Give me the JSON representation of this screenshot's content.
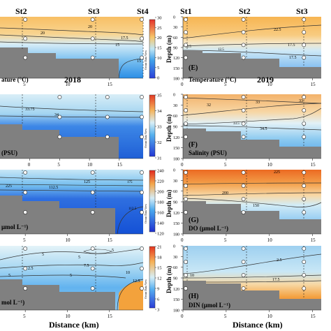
{
  "figure": {
    "year_left": "2018",
    "year_right": "2019",
    "xlabel": "Distance (km)",
    "ylabel": "Depth (m)",
    "colorbar_side_label": "Ocean Data View"
  },
  "chart_data": [
    {
      "type": "heatmap",
      "column": "left",
      "row": 0,
      "variable": "Temperature",
      "label": "ature (°C)",
      "stations": [
        {
          "name": "St2",
          "x": 5
        },
        {
          "name": "St3",
          "x": 13
        },
        {
          "name": "St4",
          "x": 19
        }
      ],
      "xlim": [
        2,
        19
      ],
      "xticks": [
        5,
        10,
        15
      ],
      "colorbar": {
        "min": 0,
        "max": 30,
        "ticks": [
          0,
          5,
          10,
          15,
          20,
          25,
          30
        ],
        "scheme": "temp"
      },
      "contour_labels": [
        "20",
        "20",
        "17.5",
        "15",
        "15"
      ],
      "colors": {
        "shallow": "#f7b351",
        "deep": "#2b8ee6",
        "land": "#808080"
      }
    },
    {
      "type": "heatmap",
      "column": "right",
      "row": 0,
      "panel_letter": "(E)",
      "variable": "Temperature",
      "label": "Temperature (°C)",
      "stations": [
        {
          "name": "St1",
          "x": 0
        },
        {
          "name": "St2",
          "x": 7
        },
        {
          "name": "St3",
          "x": 14
        }
      ],
      "xlim": [
        0,
        16
      ],
      "xticks": [
        0,
        5,
        10,
        15
      ],
      "ylim": [
        0,
        180
      ],
      "yticks": [
        0,
        30,
        60,
        90,
        120,
        150,
        180
      ],
      "contour_labels": [
        "22.5",
        "17.5",
        "12.5",
        "12.5",
        "17.5"
      ],
      "colors": {
        "shallow": "#f7b351",
        "deep": "#5aa7ee",
        "land": "#808080"
      }
    },
    {
      "type": "heatmap",
      "column": "left",
      "row": 1,
      "variable": "Salinity",
      "label": "(PSU)",
      "stations": [
        {
          "name": "St2",
          "x": 5
        },
        {
          "name": "St3",
          "x": 13
        },
        {
          "name": "St4",
          "x": 19
        }
      ],
      "xlim": [
        -5,
        19
      ],
      "xticks": [
        0,
        5,
        10,
        15
      ],
      "colorbar": {
        "min": 31,
        "max": 35,
        "ticks": [
          31,
          32,
          33,
          34,
          35
        ],
        "scheme": "sal"
      },
      "contour_labels": [
        "33.75",
        "34"
      ],
      "colors": {
        "shallow": "#bfe2f3",
        "deep": "#1f5fd6",
        "land": "#808080"
      }
    },
    {
      "type": "heatmap",
      "column": "right",
      "row": 1,
      "panel_letter": "(F)",
      "variable": "Salinity",
      "label": "Salinity (PSU)",
      "stations": [
        {
          "name": "St1",
          "x": 0
        },
        {
          "name": "St2",
          "x": 7
        },
        {
          "name": "St3",
          "x": 14
        }
      ],
      "xlim": [
        0,
        16
      ],
      "xticks": [
        0,
        5,
        10,
        15
      ],
      "ylim": [
        0,
        180
      ],
      "yticks": [
        0,
        30,
        60,
        90,
        120,
        150,
        180
      ],
      "contour_labels": [
        "32",
        "33",
        "33",
        "33.5",
        "34.5"
      ],
      "colors": {
        "shallow": "#f6c98f",
        "deep": "#6ab0e6",
        "land": "#808080"
      }
    },
    {
      "type": "heatmap",
      "column": "left",
      "row": 2,
      "variable": "DO",
      "label": "μmol L⁻¹)",
      "stations": [
        {
          "name": "St2",
          "x": 5
        },
        {
          "name": "St3",
          "x": 13
        },
        {
          "name": "St4",
          "x": 19
        }
      ],
      "xlim": [
        2,
        19
      ],
      "xticks": [
        5,
        10,
        15
      ],
      "colorbar": {
        "min": 120,
        "max": 240,
        "ticks": [
          120,
          140,
          160,
          180,
          200,
          220,
          240
        ],
        "scheme": "do"
      },
      "contour_labels": [
        "125",
        "112.5",
        "225",
        "175",
        "112.5"
      ],
      "colors": {
        "shallow": "#9fd4f0",
        "deep": "#1451d6",
        "land": "#808080"
      }
    },
    {
      "type": "heatmap",
      "column": "right",
      "row": 2,
      "panel_letter": "(G)",
      "variable": "DO",
      "label": "DO (μmol L⁻¹)",
      "stations": [
        {
          "name": "St1",
          "x": 0
        },
        {
          "name": "St2",
          "x": 7
        },
        {
          "name": "St3",
          "x": 14
        }
      ],
      "xlim": [
        0,
        16
      ],
      "xticks": [
        0,
        5,
        10,
        15
      ],
      "ylim": [
        0,
        180
      ],
      "yticks": [
        0,
        30,
        60,
        90,
        120,
        150,
        180
      ],
      "contour_labels": [
        "225",
        "200",
        "150"
      ],
      "colors": {
        "shallow": "#ee7428",
        "deep": "#6ab6ee",
        "land": "#808080"
      }
    },
    {
      "type": "heatmap",
      "column": "left",
      "row": 3,
      "variable": "DIN",
      "label": "mol L⁻¹)",
      "stations": [
        {
          "name": "St2",
          "x": 5
        },
        {
          "name": "St3",
          "x": 13
        },
        {
          "name": "St4",
          "x": 19
        }
      ],
      "xlim": [
        2,
        19
      ],
      "xticks": [
        5,
        10,
        15
      ],
      "colorbar": {
        "min": 3,
        "max": 21,
        "ticks": [
          3,
          6,
          9,
          12,
          15,
          18,
          21
        ],
        "scheme": "din"
      },
      "contour_labels": [
        "5",
        "5",
        "5",
        "7.5",
        "2.5",
        "5",
        "5",
        "10",
        "12.5"
      ],
      "colors": {
        "shallow": "#cfe9f6",
        "deep": "#f3a23c",
        "land": "#808080"
      }
    },
    {
      "type": "heatmap",
      "column": "right",
      "row": 3,
      "panel_letter": "(H)",
      "variable": "DIN",
      "label": "DIN (μmol L⁻¹)",
      "stations": [
        {
          "name": "St1",
          "x": 0
        },
        {
          "name": "St2",
          "x": 7
        },
        {
          "name": "St3",
          "x": 14
        }
      ],
      "xlim": [
        0,
        16
      ],
      "xticks": [
        0,
        5,
        10,
        15
      ],
      "ylim": [
        0,
        180
      ],
      "yticks": [
        0,
        30,
        60,
        90,
        120,
        150,
        180
      ],
      "contour_labels": [
        "2.5",
        "10",
        "17.5"
      ],
      "colors": {
        "shallow": "#a8d6f0",
        "deep": "#f08a30",
        "land": "#808080"
      }
    }
  ]
}
